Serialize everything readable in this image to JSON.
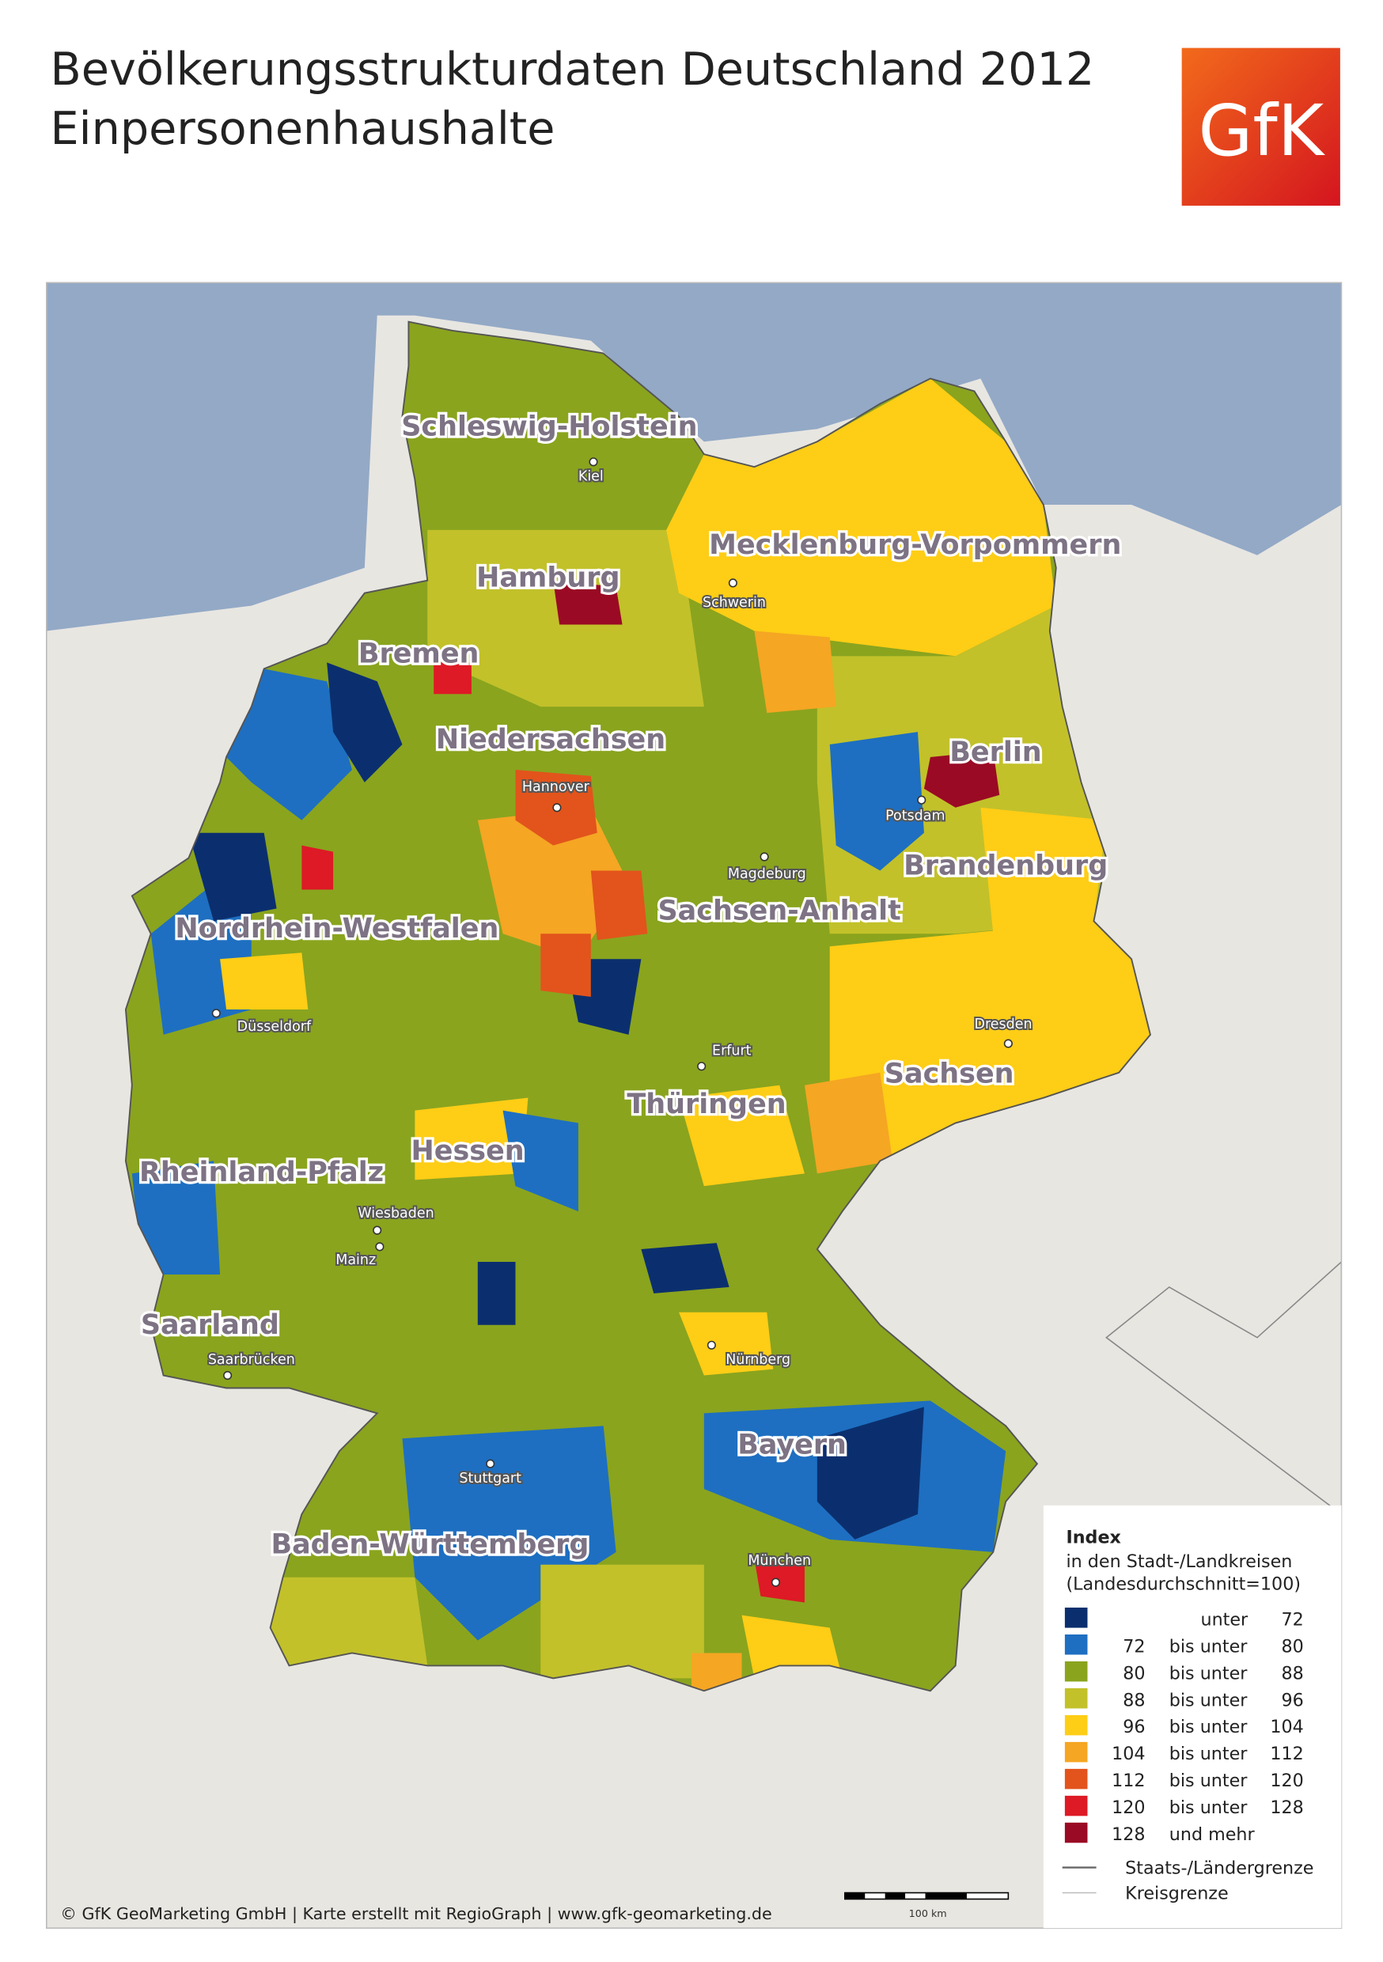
{
  "header": {
    "title_line1": "Bevölkerungsstrukturdaten Deutschland 2012",
    "title_line2": "Einpersonenhaushalte",
    "logo": "GfK"
  },
  "map": {
    "states": [
      "Schleswig-Holstein",
      "Mecklenburg-Vorpommern",
      "Hamburg",
      "Bremen",
      "Niedersachsen",
      "Berlin",
      "Brandenburg",
      "Sachsen-Anhalt",
      "Nordrhein-Westfalen",
      "Sachsen",
      "Thüringen",
      "Hessen",
      "Rheinland-Pfalz",
      "Saarland",
      "Bayern",
      "Baden-Württemberg"
    ],
    "cities": [
      "Kiel",
      "Schwerin",
      "Hannover",
      "Potsdam",
      "Magdeburg",
      "Düsseldorf",
      "Dresden",
      "Erfurt",
      "Wiesbaden",
      "Mainz",
      "Saarbrücken",
      "Nürnberg",
      "Stuttgart",
      "München"
    ],
    "scale_label": "100 km"
  },
  "legend": {
    "title": "Index",
    "subtitle_line1": "in den Stadt-/Landkreisen",
    "subtitle_line2": "(Landesdurchschnitt=100)",
    "classes": [
      {
        "color": "#0b2f6e",
        "text": "unter",
        "to": 72
      },
      {
        "color": "#1e6fc1",
        "from": 72,
        "text": "bis unter",
        "to": 80
      },
      {
        "color": "#8aa41e",
        "from": 80,
        "text": "bis unter",
        "to": 88
      },
      {
        "color": "#c2c12a",
        "from": 88,
        "text": "bis unter",
        "to": 96
      },
      {
        "color": "#fecd16",
        "from": 96,
        "text": "bis unter",
        "to": 104
      },
      {
        "color": "#f5a623",
        "from": 104,
        "text": "bis unter",
        "to": 112
      },
      {
        "color": "#e2541c",
        "from": 112,
        "text": "bis unter",
        "to": 120
      },
      {
        "color": "#dd1a25",
        "from": 120,
        "text": "bis unter",
        "to": 128
      },
      {
        "color": "#9a0a24",
        "from": 128,
        "text": "und mehr"
      }
    ],
    "border_state": "Staats-/Ländergrenze",
    "border_district": "Kreisgrenze"
  },
  "footer": "© GfK GeoMarketing GmbH | Karte erstellt mit RegioGraph | www.gfk-geomarketing.de"
}
